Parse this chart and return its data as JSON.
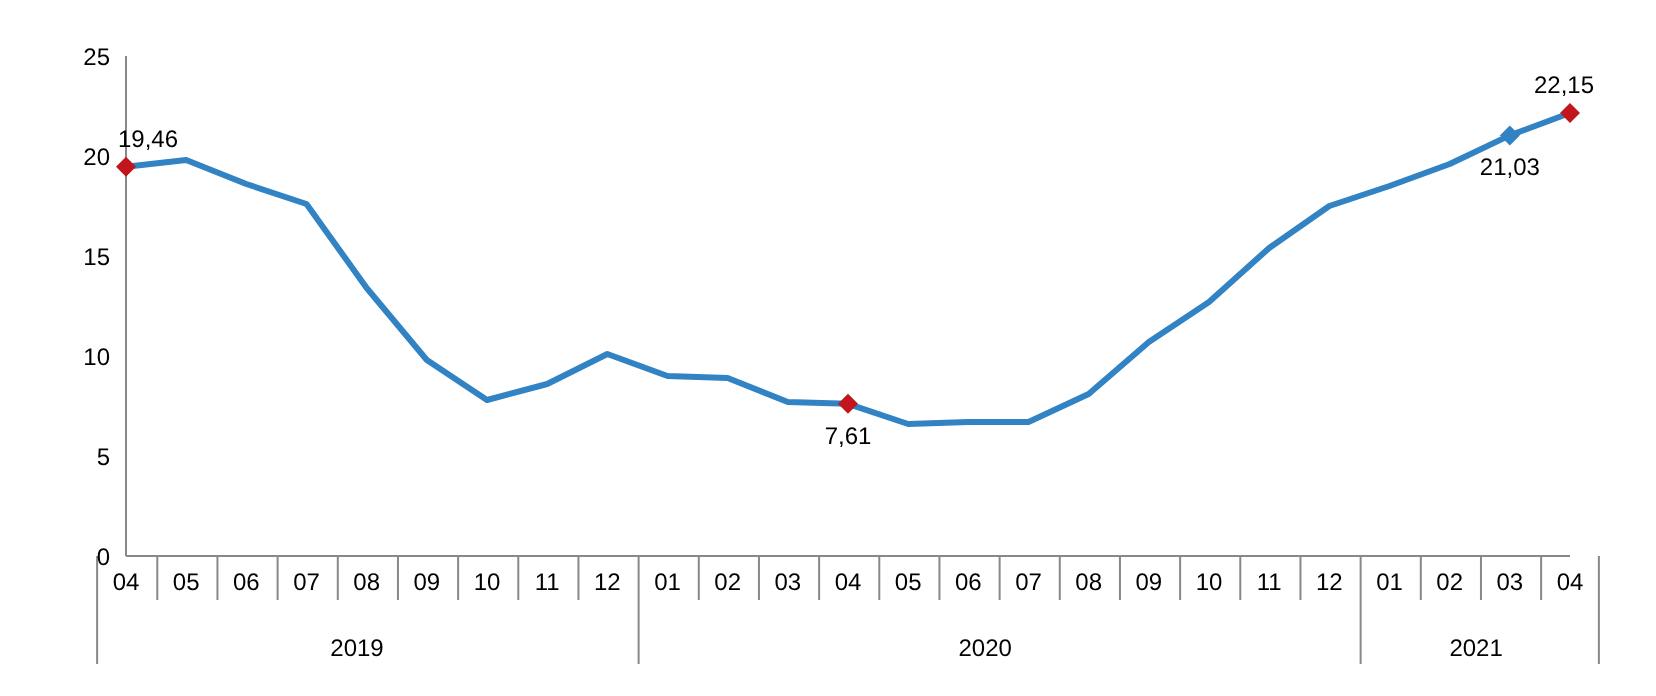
{
  "chart_data": {
    "type": "line",
    "categories": [
      "04",
      "05",
      "06",
      "07",
      "08",
      "09",
      "10",
      "11",
      "12",
      "01",
      "02",
      "03",
      "04",
      "05",
      "06",
      "07",
      "08",
      "09",
      "10",
      "11",
      "12",
      "01",
      "02",
      "03",
      "04"
    ],
    "annotations": [
      "2019",
      "2020",
      "2021"
    ],
    "series": [
      {
        "color": "#3283c4",
        "values": [
          19.46,
          19.8,
          18.6,
          17.6,
          13.4,
          9.8,
          7.8,
          8.6,
          10.1,
          9.0,
          8.9,
          7.7,
          7.61,
          6.6,
          6.7,
          6.7,
          8.1,
          10.7,
          12.7,
          15.4,
          17.5,
          18.5,
          19.6,
          21.03,
          22.15
        ],
        "colors": [
          "#c0161c",
          null,
          null,
          null,
          null,
          null,
          null,
          null,
          null,
          null,
          null,
          null,
          "#c0161c",
          null,
          null,
          null,
          null,
          null,
          null,
          null,
          null,
          null,
          null,
          "#3283c4",
          "#c0161c"
        ],
        "value_labels": [
          "19,46",
          null,
          null,
          null,
          null,
          null,
          null,
          null,
          null,
          null,
          null,
          null,
          "7,61",
          null,
          null,
          null,
          null,
          null,
          null,
          null,
          null,
          null,
          null,
          "21,03",
          "22,15"
        ]
      }
    ],
    "ylim": [
      0,
      25
    ],
    "yticks": [
      0,
      5,
      10,
      15,
      20,
      25
    ],
    "grid": false,
    "legend": false
  }
}
